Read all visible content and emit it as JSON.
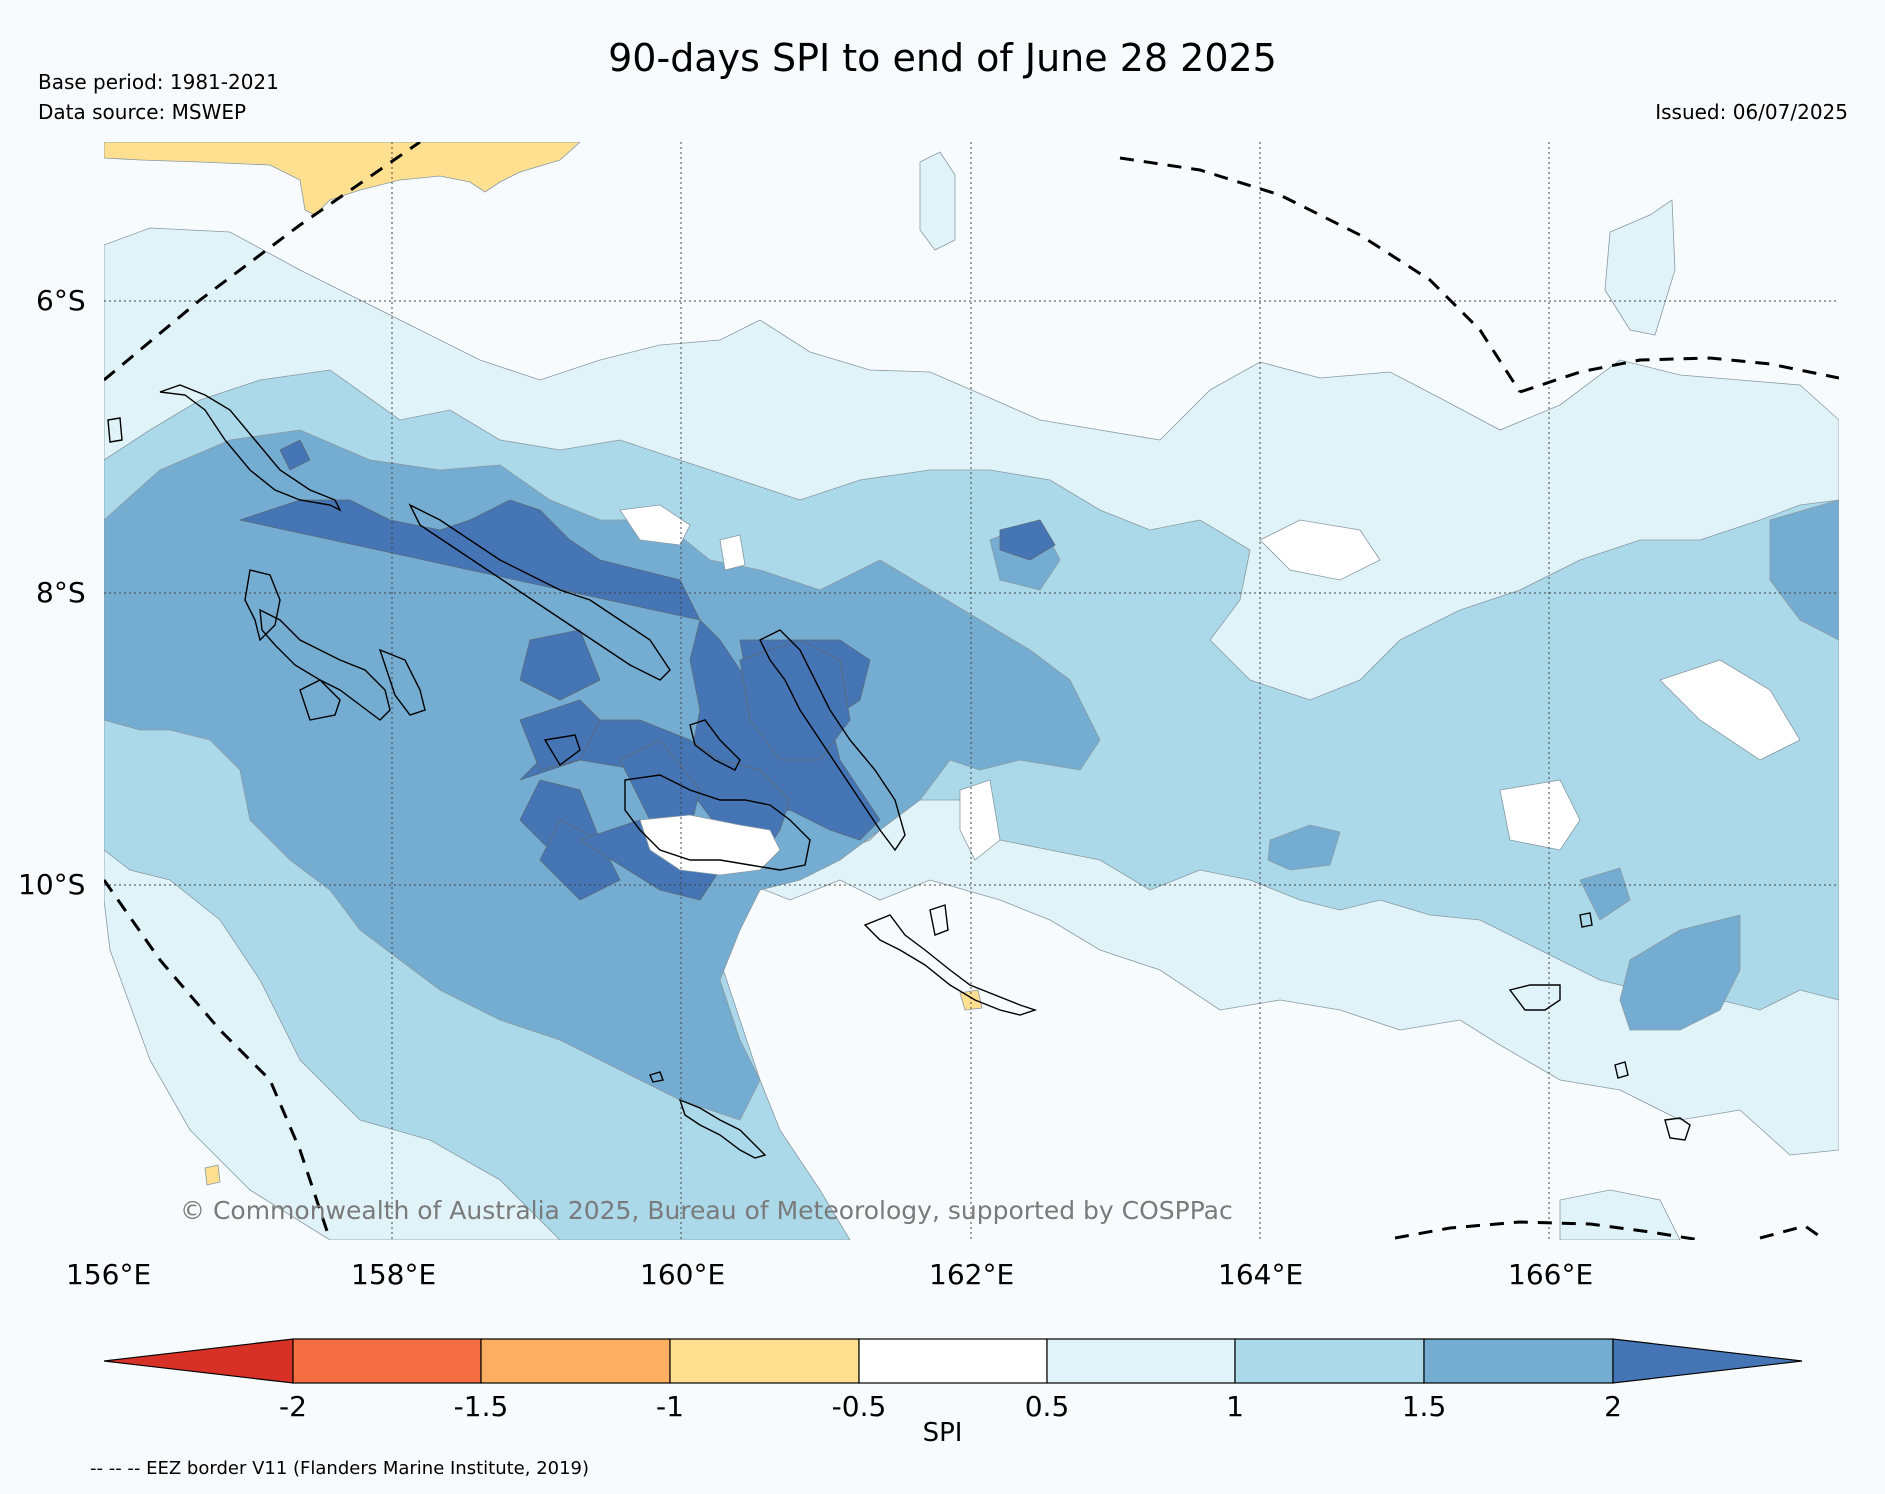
{
  "title": "90-days SPI to end of June 28 2025",
  "base_period": "Base period: 1981-2021",
  "data_source": "Data source: MSWEP",
  "issued": "Issued: 06/07/2025",
  "copyright": "© Commonwealth of Australia 2025, Bureau of Meteorology, supported by COSPPac",
  "eez_note": "-- -- -- EEZ border V11 (Flanders Marine Institute, 2019)",
  "map": {
    "lon_labels": [
      "156°E",
      "158°E",
      "160°E",
      "162°E",
      "164°E",
      "166°E"
    ],
    "lat_labels": [
      "6°S",
      "8°S",
      "10°S"
    ]
  },
  "colorbar": {
    "label": "SPI",
    "ticks": [
      "-2",
      "-1.5",
      "-1",
      "-0.5",
      "0.5",
      "1",
      "1.5",
      "2"
    ],
    "colors": [
      "#d73027",
      "#f46d43",
      "#fdae61",
      "#fee090",
      "#ffffff",
      "#e0f3f8",
      "#abd9e9",
      "#74add1",
      "#4575b4"
    ]
  }
}
